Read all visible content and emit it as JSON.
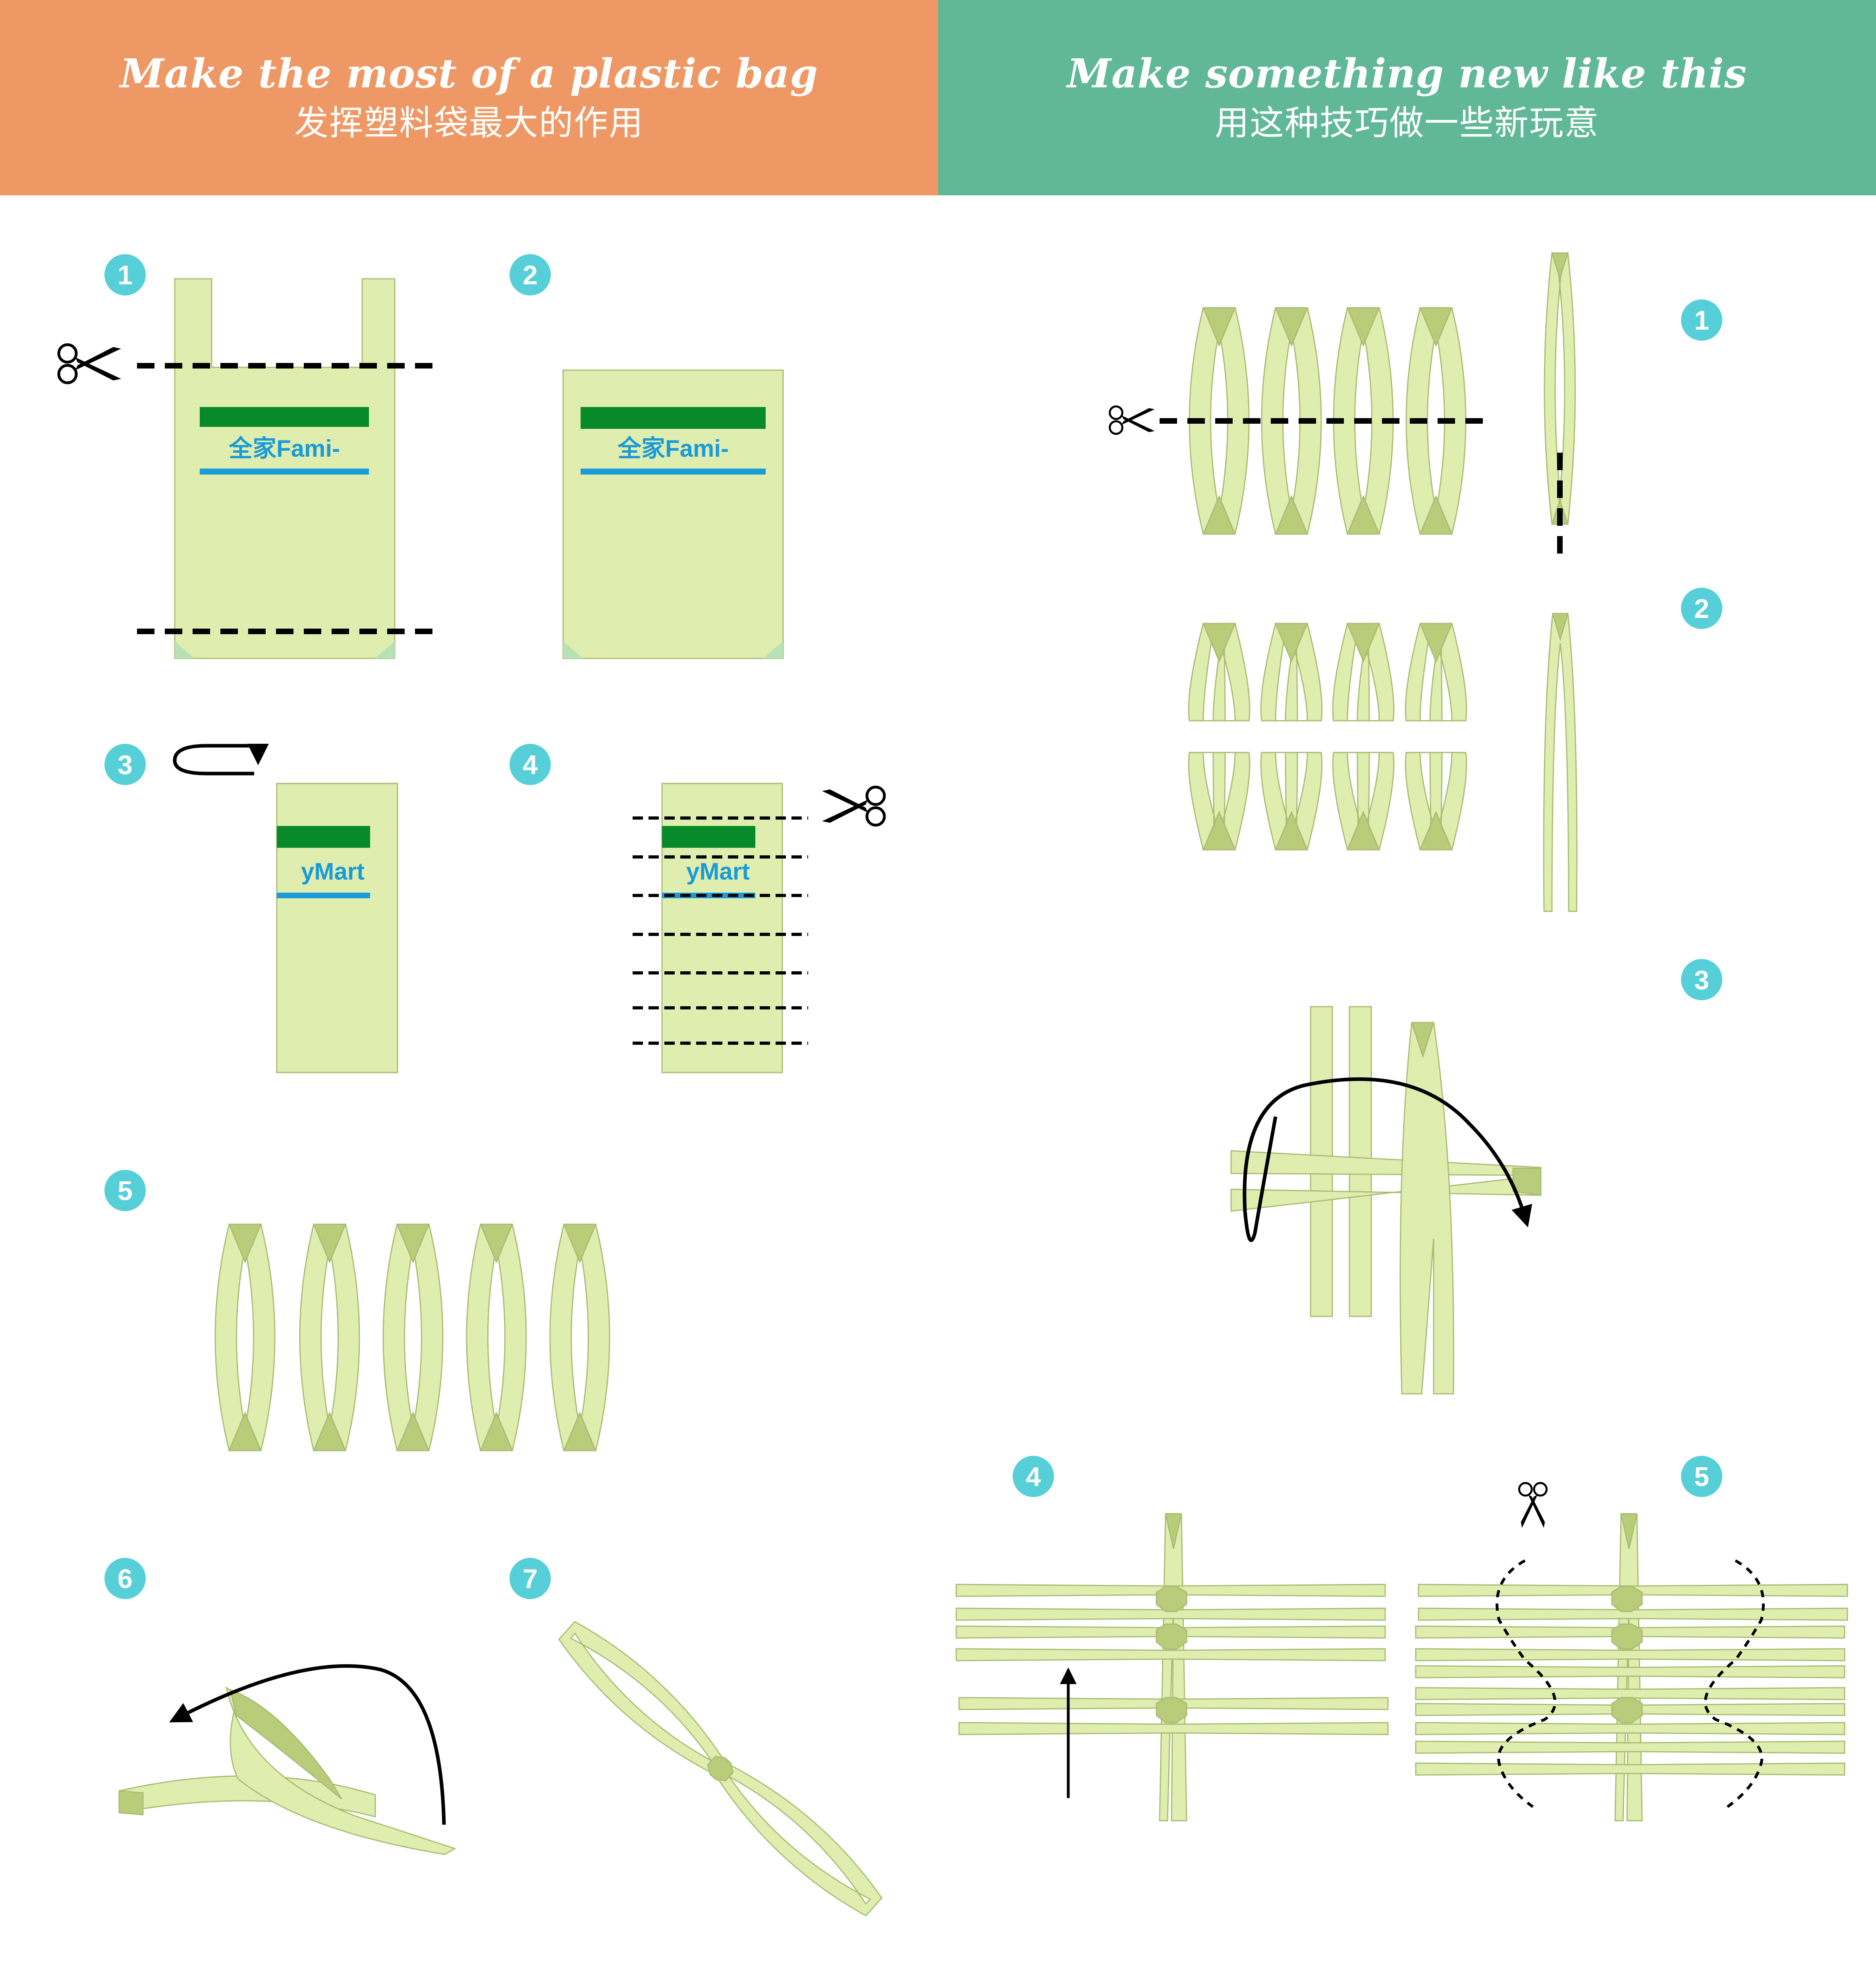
{
  "header": {
    "left": {
      "title_en": "Make the most of a plastic bag",
      "title_zh": "发挥塑料袋最大的作用",
      "bg": "#EE9965"
    },
    "right": {
      "title_en": "Make something new like this",
      "title_zh": "用这种技巧做一些新玩意",
      "bg": "#61B898"
    }
  },
  "colors": {
    "bag": "#DFEDAF",
    "bag_stroke": "#A9BC73",
    "fold_shade": "#B8CC7A",
    "stripe_green": "#088A2A",
    "stripe_blue": "#1A9BD7",
    "step_badge": "#57CFD8",
    "line": "#111111"
  },
  "icons": [
    "scissors-icon",
    "curved-arrow-icon",
    "arrow-up-icon"
  ],
  "left_steps": [
    {
      "number": "1",
      "logo_text": "全家Fami-"
    },
    {
      "number": "2",
      "logo_text": "全家Fami-"
    },
    {
      "number": "3",
      "logo_text": "yMart"
    },
    {
      "number": "4",
      "logo_text": "yMart"
    },
    {
      "number": "5"
    },
    {
      "number": "6"
    },
    {
      "number": "7"
    }
  ],
  "right_steps": [
    {
      "number": "1"
    },
    {
      "number": "2"
    },
    {
      "number": "3"
    },
    {
      "number": "4"
    },
    {
      "number": "5"
    }
  ]
}
